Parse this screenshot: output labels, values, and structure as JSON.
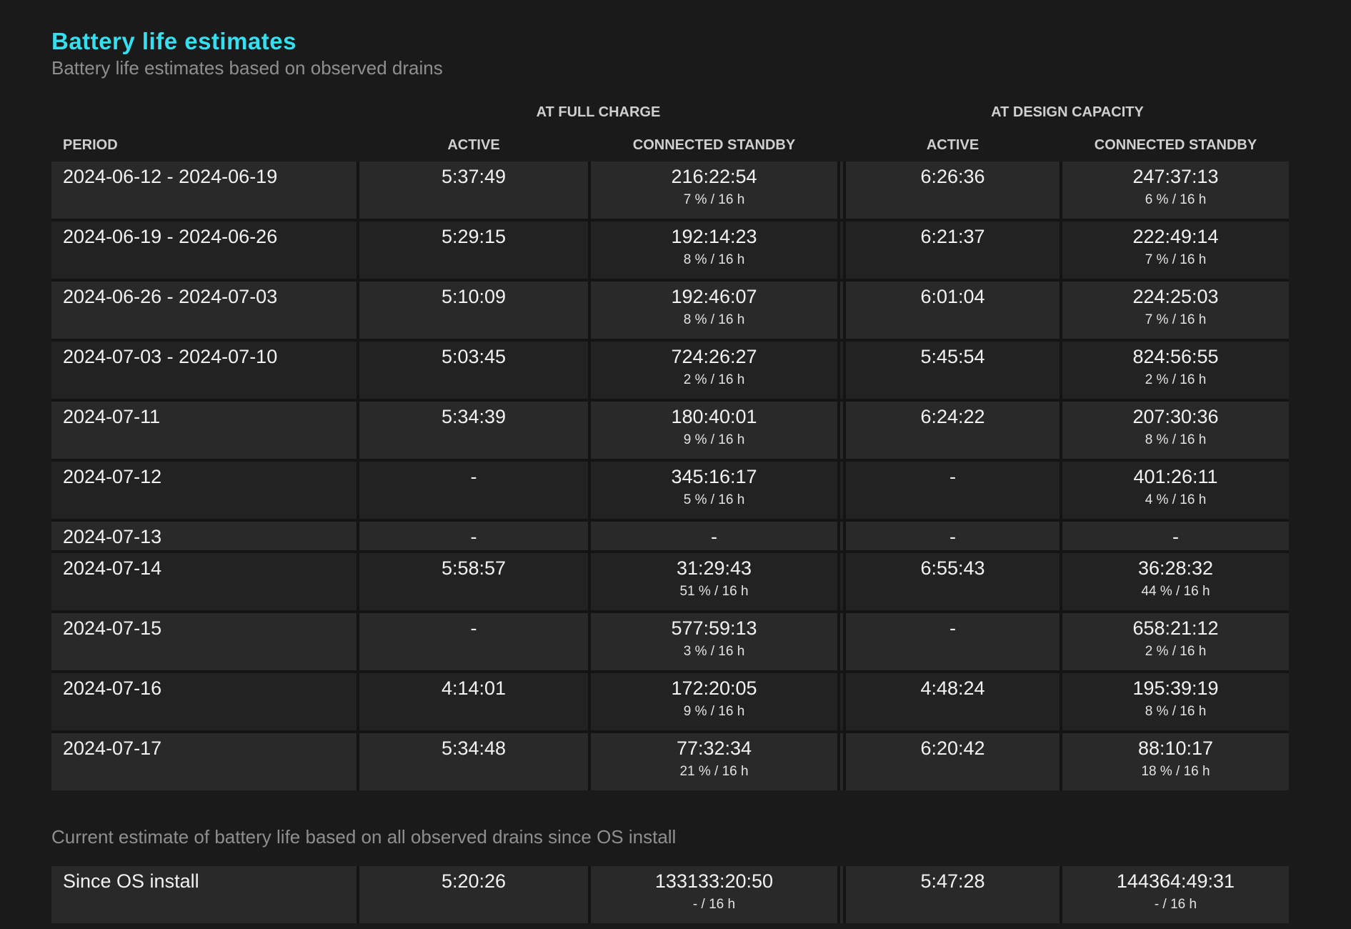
{
  "page": {
    "title": "Battery life estimates",
    "subtitle": "Battery life estimates based on observed drains",
    "footer_note": "Current estimate of battery life based on all observed drains since OS install"
  },
  "colors": {
    "background": "#1a1a1a",
    "accent_title": "#36dff0",
    "muted_text": "#8f8f8f",
    "header_text": "#cfcfcf",
    "value_text": "#f2f2f2",
    "row_light": "#292929",
    "row_dark": "#222222"
  },
  "table": {
    "group_headers": [
      "AT FULL CHARGE",
      "AT DESIGN CAPACITY"
    ],
    "col_headers": [
      "PERIOD",
      "ACTIVE",
      "CONNECTED STANDBY",
      "ACTIVE",
      "CONNECTED STANDBY"
    ],
    "rows": [
      {
        "period": "2024-06-12 - 2024-06-19",
        "fc_active": "5:37:49",
        "fc_standby": "216:22:54",
        "fc_standby_pct": "7 % / 16 h",
        "dc_active": "6:26:36",
        "dc_standby": "247:37:13",
        "dc_standby_pct": "6 % / 16 h"
      },
      {
        "period": "2024-06-19 - 2024-06-26",
        "fc_active": "5:29:15",
        "fc_standby": "192:14:23",
        "fc_standby_pct": "8 % / 16 h",
        "dc_active": "6:21:37",
        "dc_standby": "222:49:14",
        "dc_standby_pct": "7 % / 16 h"
      },
      {
        "period": "2024-06-26 - 2024-07-03",
        "fc_active": "5:10:09",
        "fc_standby": "192:46:07",
        "fc_standby_pct": "8 % / 16 h",
        "dc_active": "6:01:04",
        "dc_standby": "224:25:03",
        "dc_standby_pct": "7 % / 16 h"
      },
      {
        "period": "2024-07-03 - 2024-07-10",
        "fc_active": "5:03:45",
        "fc_standby": "724:26:27",
        "fc_standby_pct": "2 % / 16 h",
        "dc_active": "5:45:54",
        "dc_standby": "824:56:55",
        "dc_standby_pct": "2 % / 16 h"
      },
      {
        "period": "2024-07-11",
        "fc_active": "5:34:39",
        "fc_standby": "180:40:01",
        "fc_standby_pct": "9 % / 16 h",
        "dc_active": "6:24:22",
        "dc_standby": "207:30:36",
        "dc_standby_pct": "8 % / 16 h"
      },
      {
        "period": "2024-07-12",
        "fc_active": "-",
        "fc_standby": "345:16:17",
        "fc_standby_pct": "5 % / 16 h",
        "dc_active": "-",
        "dc_standby": "401:26:11",
        "dc_standby_pct": "4 % / 16 h"
      },
      {
        "period": "2024-07-13",
        "fc_active": "-",
        "fc_standby": "-",
        "fc_standby_pct": "",
        "dc_active": "-",
        "dc_standby": "-",
        "dc_standby_pct": ""
      },
      {
        "period": "2024-07-14",
        "fc_active": "5:58:57",
        "fc_standby": "31:29:43",
        "fc_standby_pct": "51 % / 16 h",
        "dc_active": "6:55:43",
        "dc_standby": "36:28:32",
        "dc_standby_pct": "44 % / 16 h"
      },
      {
        "period": "2024-07-15",
        "fc_active": "-",
        "fc_standby": "577:59:13",
        "fc_standby_pct": "3 % / 16 h",
        "dc_active": "-",
        "dc_standby": "658:21:12",
        "dc_standby_pct": "2 % / 16 h"
      },
      {
        "period": "2024-07-16",
        "fc_active": "4:14:01",
        "fc_standby": "172:20:05",
        "fc_standby_pct": "9 % / 16 h",
        "dc_active": "4:48:24",
        "dc_standby": "195:39:19",
        "dc_standby_pct": "8 % / 16 h"
      },
      {
        "period": "2024-07-17",
        "fc_active": "5:34:48",
        "fc_standby": "77:32:34",
        "fc_standby_pct": "21 % / 16 h",
        "dc_active": "6:20:42",
        "dc_standby": "88:10:17",
        "dc_standby_pct": "18 % / 16 h"
      }
    ],
    "since_install_row": {
      "period": "Since OS install",
      "fc_active": "5:20:26",
      "fc_standby": "133133:20:50",
      "fc_standby_pct": "- / 16 h",
      "dc_active": "5:47:28",
      "dc_standby": "144364:49:31",
      "dc_standby_pct": "- / 16 h"
    }
  }
}
